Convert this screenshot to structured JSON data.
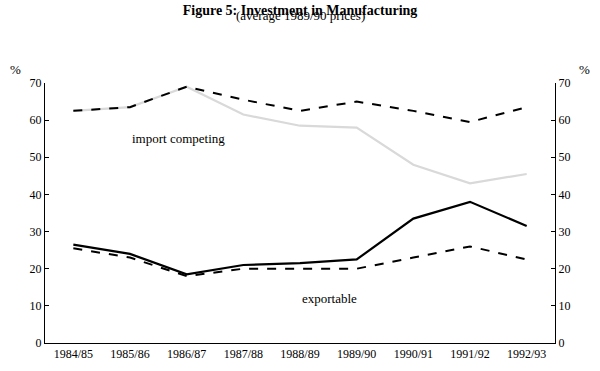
{
  "chart_data": {
    "type": "line",
    "title": "Figure 5: Investment in Manufacturing",
    "subtitle": "(average 1989/90 prices)",
    "ylabel": "%",
    "y2label": "%",
    "categories": [
      "1984/85",
      "1985/86",
      "1986/87",
      "1987/88",
      "1988/89",
      "1989/90",
      "1990/91",
      "1991/92",
      "1992/93"
    ],
    "series": [
      {
        "color": "#d9d9d9",
        "line_style": "solid",
        "values": [
          62.5,
          63.5,
          69,
          61.5,
          58.5,
          58,
          48,
          43,
          45.5
        ]
      },
      {
        "color": "#000000",
        "line_style": "dash",
        "values": [
          62.5,
          63.5,
          69,
          65.5,
          62.5,
          65,
          62.5,
          59.5,
          63.5
        ]
      },
      {
        "color": "#000000",
        "line_style": "solid",
        "values": [
          26.5,
          24,
          18.5,
          21,
          21.5,
          22.5,
          33.5,
          38,
          31.5
        ]
      },
      {
        "color": "#000000",
        "line_style": "dash",
        "values": [
          25.5,
          23,
          18,
          20,
          20,
          20,
          23,
          26,
          22.5
        ]
      }
    ],
    "annotations": [
      {
        "text": "import competing",
        "category": "1985/86",
        "y": 55
      },
      {
        "text": "exportable",
        "category": "1988/89",
        "y": 12
      }
    ],
    "ylim": [
      0,
      70
    ],
    "yticks": [
      0,
      10,
      20,
      30,
      40,
      50,
      60,
      70
    ],
    "y2lim": [
      0,
      70
    ],
    "y2ticks": [
      0,
      10,
      20,
      30,
      40,
      50,
      60,
      70
    ],
    "grid": false
  }
}
